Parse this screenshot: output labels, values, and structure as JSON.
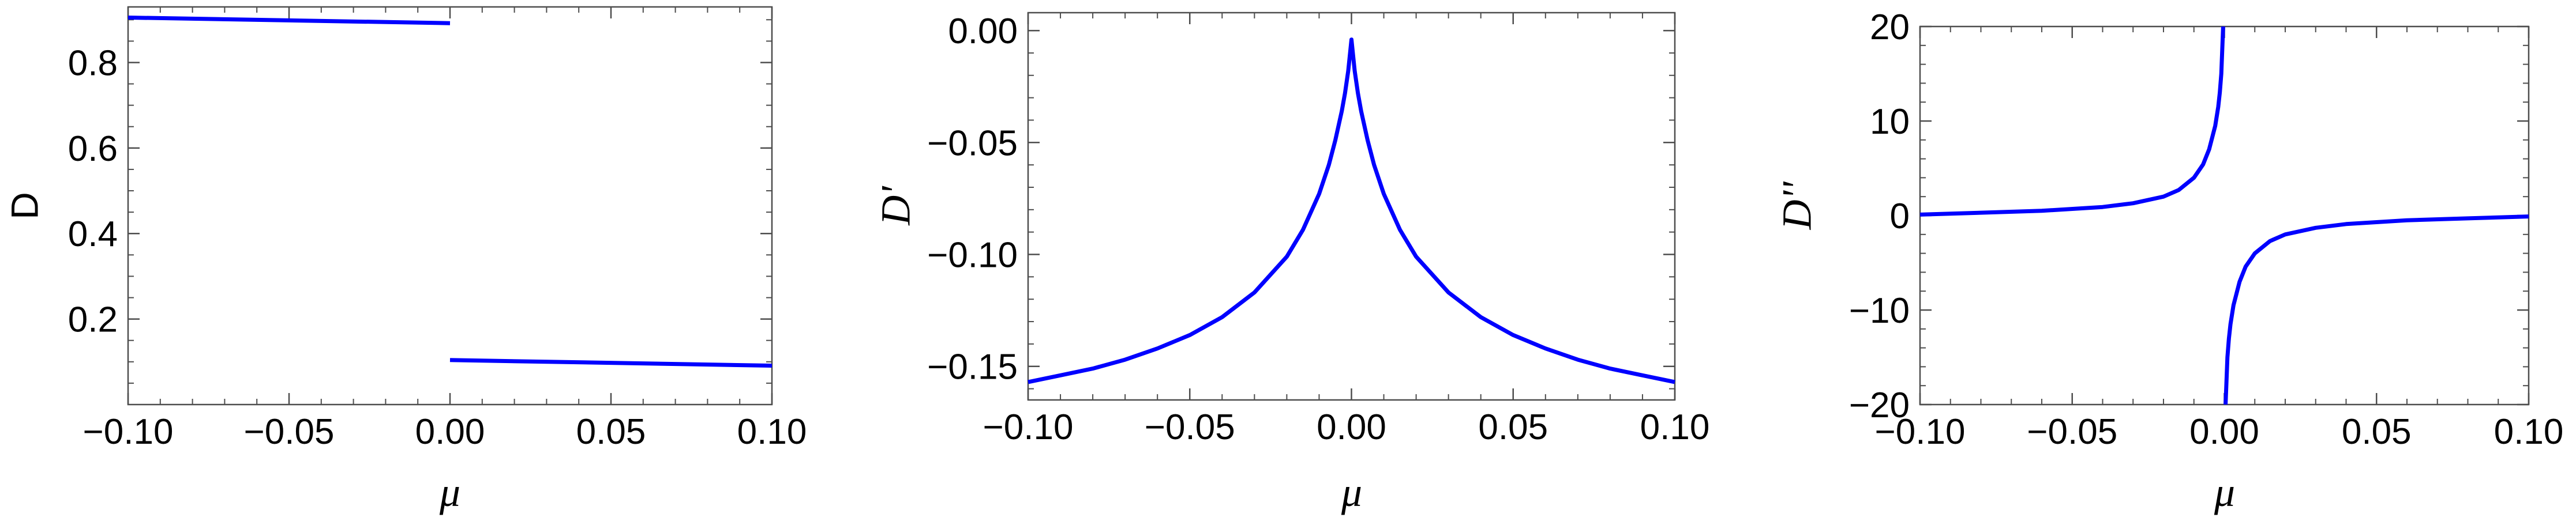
{
  "chart_data": [
    {
      "type": "line",
      "title": "",
      "xlabel": "μ",
      "ylabel": "D",
      "xlim": [
        -0.1,
        0.1
      ],
      "ylim": [
        0.0,
        0.93
      ],
      "xticks": [
        "-0.10",
        "-0.05",
        "0.00",
        "0.05",
        "0.10"
      ],
      "yticks": [
        "0.2",
        "0.4",
        "0.6",
        "0.8"
      ],
      "grid": false,
      "color": "#0000ff",
      "series": [
        {
          "x": [
            -0.1,
            0.0
          ],
          "y": [
            0.905,
            0.892
          ]
        },
        {
          "x": [
            0.0,
            0.1
          ],
          "y": [
            0.104,
            0.091
          ]
        }
      ]
    },
    {
      "type": "line",
      "title": "",
      "xlabel": "μ",
      "ylabel": "D'",
      "xlim": [
        -0.1,
        0.1
      ],
      "ylim": [
        -0.165,
        0.008
      ],
      "xticks": [
        "-0.10",
        "-0.05",
        "0.00",
        "0.05",
        "0.10"
      ],
      "yticks": [
        "0.00",
        "-0.05",
        "-0.10",
        "-0.15"
      ],
      "grid": false,
      "color": "#0000ff",
      "series": [
        {
          "x": [
            -0.1,
            -0.09,
            -0.08,
            -0.07,
            -0.06,
            -0.05,
            -0.04,
            -0.03,
            -0.02,
            -0.015,
            -0.01,
            -0.007,
            -0.005,
            -0.003,
            -0.002,
            -0.001,
            -0.0005,
            0.0,
            0.0005,
            0.001,
            0.002,
            0.003,
            0.005,
            0.007,
            0.01,
            0.015,
            0.02,
            0.03,
            0.04,
            0.05,
            0.06,
            0.07,
            0.08,
            0.09,
            0.1
          ],
          "y": [
            -0.157,
            -0.154,
            -0.151,
            -0.147,
            -0.142,
            -0.136,
            -0.128,
            -0.117,
            -0.101,
            -0.089,
            -0.073,
            -0.06,
            -0.049,
            -0.036,
            -0.028,
            -0.018,
            -0.011,
            -0.004,
            -0.011,
            -0.018,
            -0.028,
            -0.036,
            -0.049,
            -0.06,
            -0.073,
            -0.089,
            -0.101,
            -0.117,
            -0.128,
            -0.136,
            -0.142,
            -0.147,
            -0.151,
            -0.154,
            -0.157
          ]
        }
      ]
    },
    {
      "type": "line",
      "title": "",
      "xlabel": "μ",
      "ylabel": "D''",
      "xlim": [
        -0.1,
        0.1
      ],
      "ylim": [
        -20,
        20
      ],
      "xticks": [
        "-0.10",
        "-0.05",
        "0.00",
        "0.05",
        "0.10"
      ],
      "yticks": [
        "20",
        "10",
        "0",
        "-10",
        "-20"
      ],
      "grid": false,
      "color": "#0000ff",
      "series": [
        {
          "x": [
            -0.1,
            -0.08,
            -0.06,
            -0.04,
            -0.03,
            -0.02,
            -0.015,
            -0.01,
            -0.007,
            -0.005,
            -0.003,
            -0.002,
            -0.0015,
            -0.001,
            -0.0007,
            -0.0004
          ],
          "y": [
            0.1,
            0.3,
            0.5,
            0.9,
            1.3,
            2.0,
            2.7,
            4.0,
            5.4,
            7.0,
            9.5,
            11.5,
            13.0,
            15.0,
            17.5,
            20.0
          ]
        },
        {
          "x": [
            0.0004,
            0.0007,
            0.001,
            0.0015,
            0.002,
            0.003,
            0.005,
            0.007,
            0.01,
            0.015,
            0.02,
            0.03,
            0.04,
            0.06,
            0.08,
            0.1
          ],
          "y": [
            -20.0,
            -17.5,
            -15.0,
            -13.0,
            -11.5,
            -9.5,
            -7.0,
            -5.4,
            -4.0,
            -2.7,
            -2.0,
            -1.3,
            -0.9,
            -0.5,
            -0.3,
            -0.1
          ]
        }
      ]
    }
  ]
}
